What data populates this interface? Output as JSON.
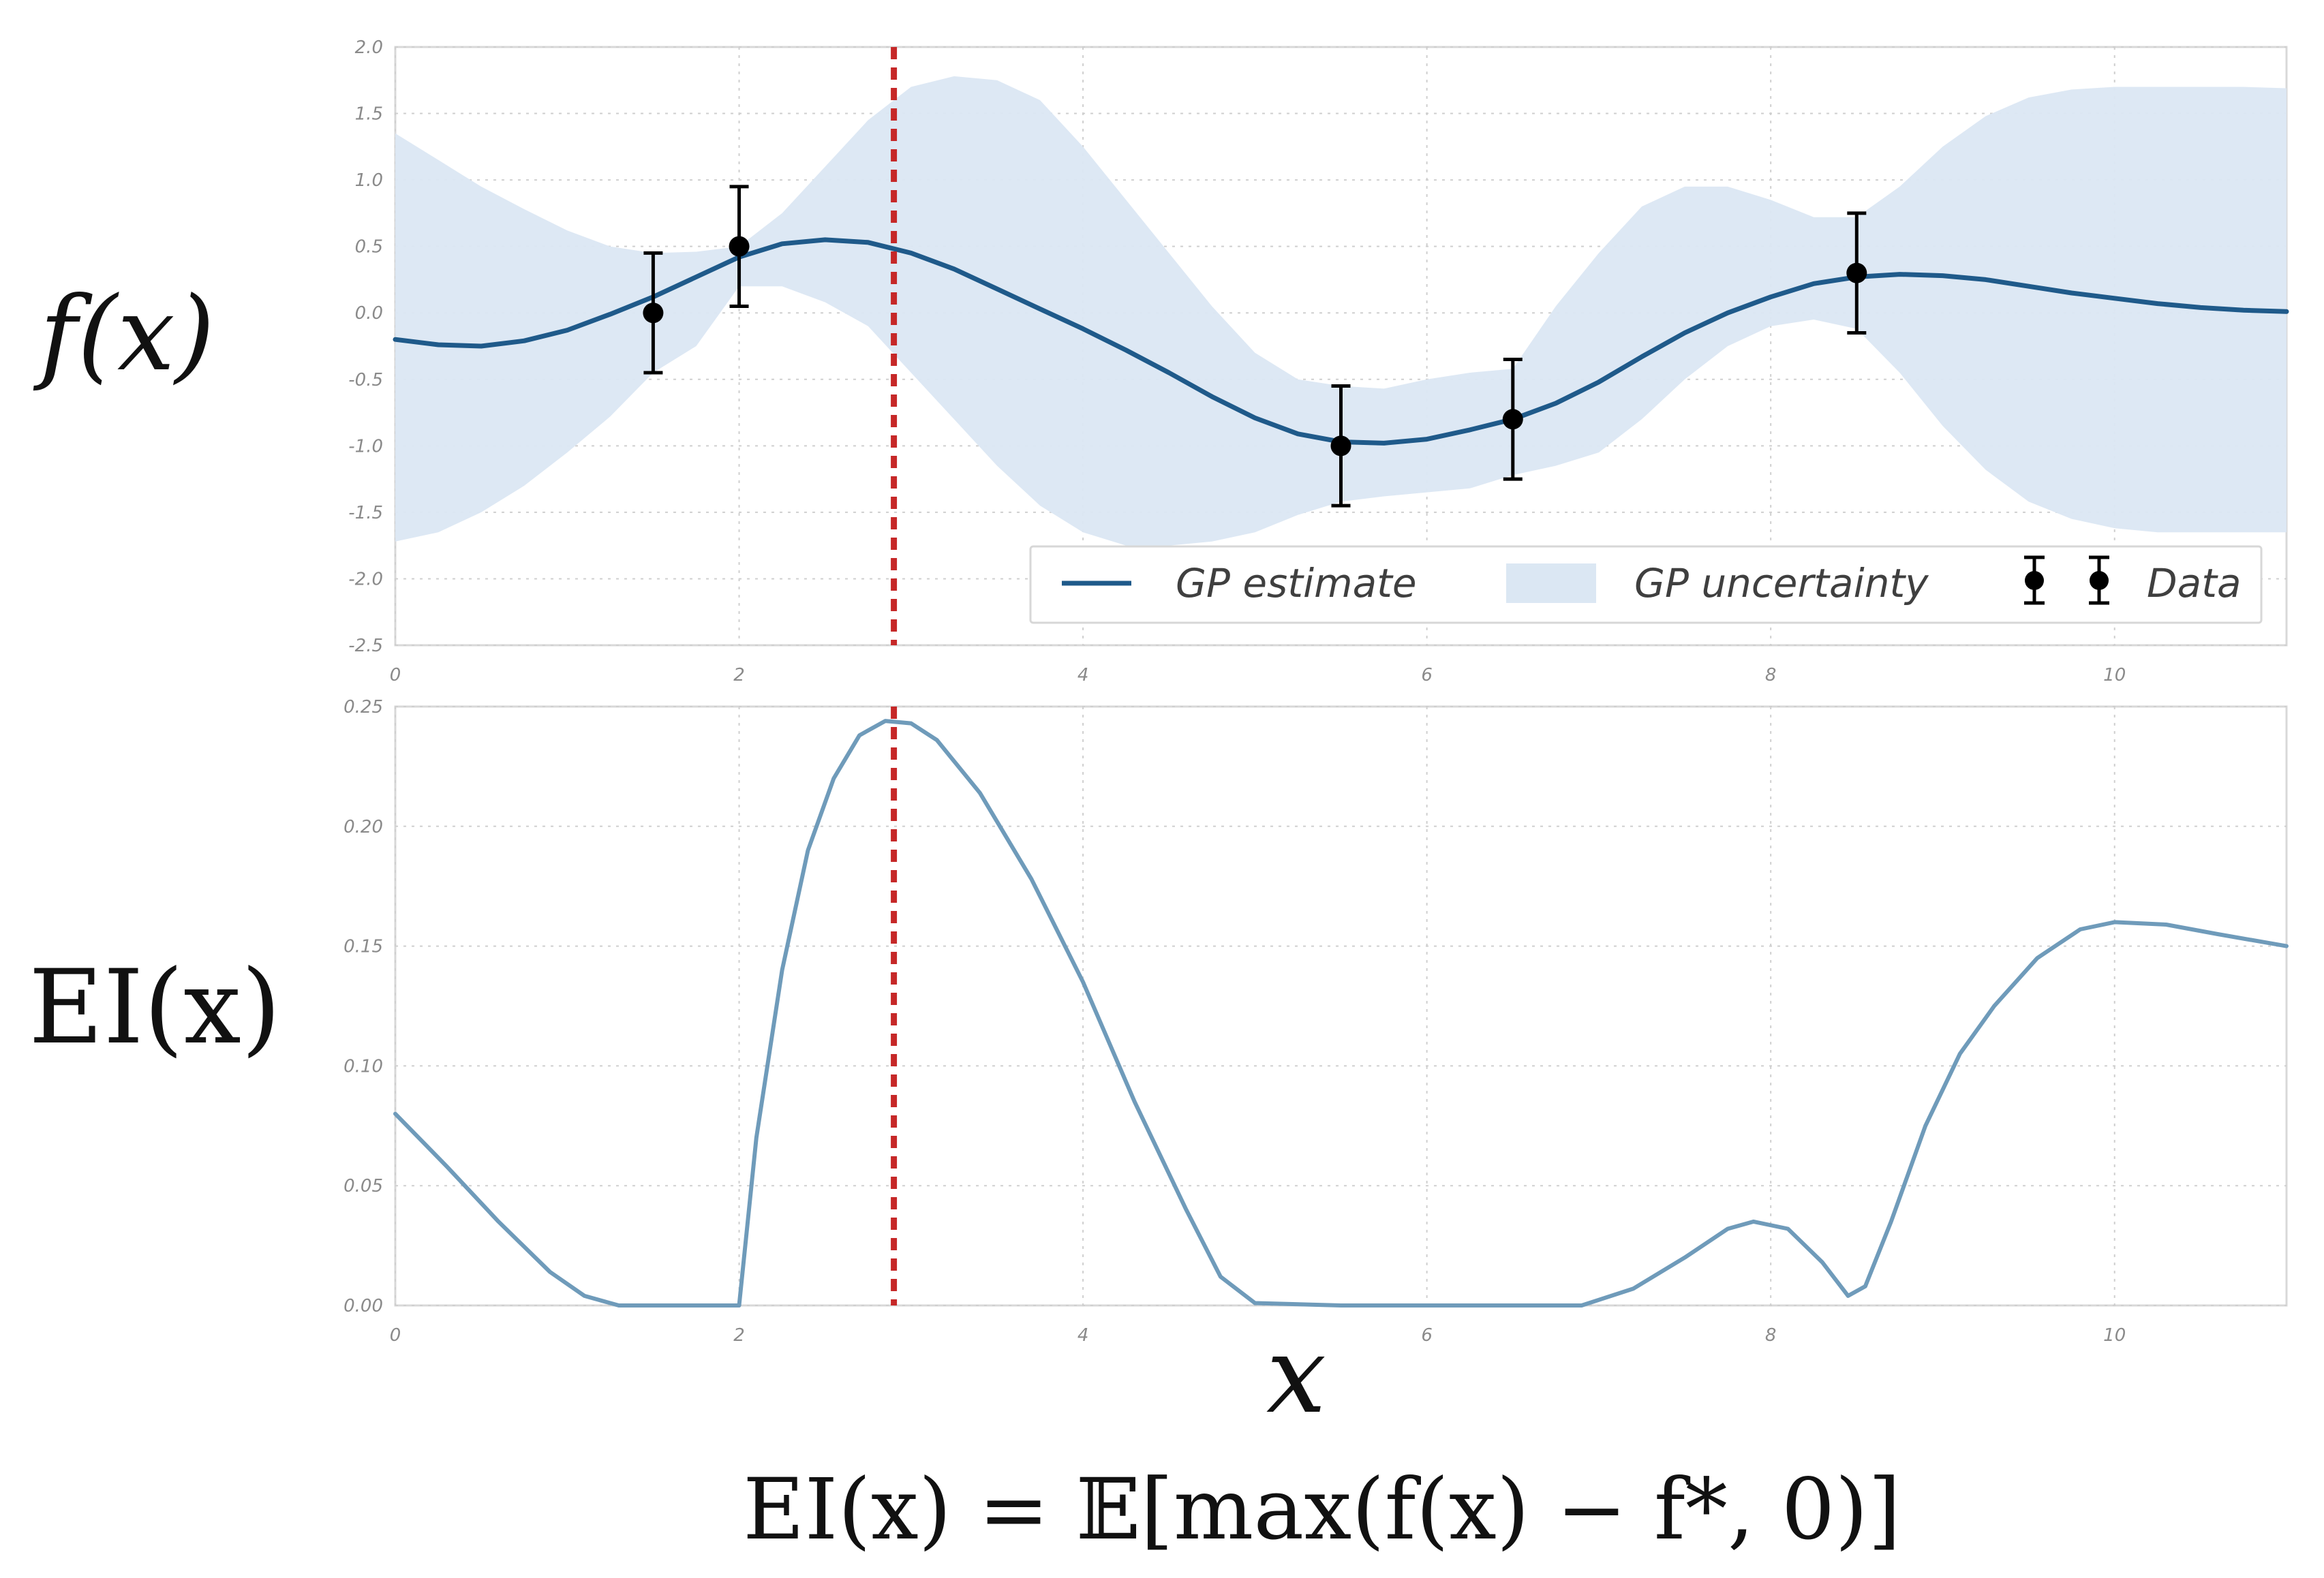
{
  "chart_data": [
    {
      "type": "line",
      "ylabel": "f(x)",
      "xlim": [
        0,
        11
      ],
      "ylim": [
        -2.5,
        2.0
      ],
      "xticks": [
        0,
        2,
        4,
        6,
        8,
        10
      ],
      "yticks": [
        2.0,
        1.5,
        1.0,
        0.5,
        0.0,
        -0.5,
        -1.0,
        -1.5,
        -2.0,
        -2.5
      ],
      "xtick_labels": [
        "0",
        "2",
        "4",
        "6",
        "8",
        "10"
      ],
      "ytick_labels": [
        "2.0",
        "1.5",
        "1.0",
        "0.5",
        "0.0",
        "-0.5",
        "-1.0",
        "-1.5",
        "-2.0",
        "-2.5"
      ],
      "grid": true,
      "legend_position": "bottom-right",
      "vline_x": 2.9,
      "series": [
        {
          "name": "GP estimate",
          "kind": "line",
          "color": "#1f5a8a",
          "x": [
            0,
            0.25,
            0.5,
            0.75,
            1.0,
            1.25,
            1.5,
            1.75,
            2.0,
            2.25,
            2.5,
            2.75,
            3.0,
            3.25,
            3.5,
            3.75,
            4.0,
            4.25,
            4.5,
            4.75,
            5.0,
            5.25,
            5.5,
            5.75,
            6.0,
            6.25,
            6.5,
            6.75,
            7.0,
            7.25,
            7.5,
            7.75,
            8.0,
            8.25,
            8.5,
            8.75,
            9.0,
            9.25,
            9.5,
            9.75,
            10.0,
            10.25,
            10.5,
            10.75,
            11.0
          ],
          "values": [
            -0.2,
            -0.24,
            -0.25,
            -0.21,
            -0.13,
            -0.01,
            0.12,
            0.27,
            0.42,
            0.52,
            0.55,
            0.53,
            0.45,
            0.33,
            0.18,
            0.03,
            -0.12,
            -0.28,
            -0.45,
            -0.63,
            -0.79,
            -0.91,
            -0.97,
            -0.98,
            -0.95,
            -0.88,
            -0.8,
            -0.68,
            -0.52,
            -0.33,
            -0.15,
            0.0,
            0.12,
            0.22,
            0.27,
            0.29,
            0.28,
            0.25,
            0.2,
            0.15,
            0.11,
            0.07,
            0.04,
            0.02,
            0.01
          ]
        },
        {
          "name": "GP uncertainty",
          "kind": "band",
          "color": "#dbe7f3",
          "x": [
            0,
            0.25,
            0.5,
            0.75,
            1.0,
            1.25,
            1.5,
            1.75,
            2.0,
            2.25,
            2.5,
            2.75,
            3.0,
            3.25,
            3.5,
            3.75,
            4.0,
            4.25,
            4.5,
            4.75,
            5.0,
            5.25,
            5.5,
            5.75,
            6.0,
            6.25,
            6.5,
            6.75,
            7.0,
            7.25,
            7.5,
            7.75,
            8.0,
            8.25,
            8.5,
            8.75,
            9.0,
            9.25,
            9.5,
            9.75,
            10.0,
            10.25,
            10.5,
            10.75,
            11.0
          ],
          "upper": [
            1.35,
            1.15,
            0.95,
            0.78,
            0.62,
            0.5,
            0.45,
            0.46,
            0.5,
            0.75,
            1.1,
            1.45,
            1.7,
            1.78,
            1.75,
            1.6,
            1.25,
            0.85,
            0.45,
            0.05,
            -0.3,
            -0.5,
            -0.55,
            -0.57,
            -0.5,
            -0.45,
            -0.42,
            0.05,
            0.45,
            0.8,
            0.95,
            0.95,
            0.85,
            0.72,
            0.72,
            0.95,
            1.25,
            1.48,
            1.62,
            1.68,
            1.7,
            1.7,
            1.7,
            1.7,
            1.69
          ],
          "lower": [
            -1.72,
            -1.65,
            -1.5,
            -1.3,
            -1.05,
            -0.78,
            -0.45,
            -0.25,
            0.2,
            0.2,
            0.08,
            -0.1,
            -0.45,
            -0.8,
            -1.15,
            -1.45,
            -1.65,
            -1.75,
            -1.75,
            -1.72,
            -1.65,
            -1.52,
            -1.42,
            -1.38,
            -1.35,
            -1.32,
            -1.22,
            -1.15,
            -1.05,
            -0.8,
            -0.5,
            -0.25,
            -0.1,
            -0.05,
            -0.12,
            -0.45,
            -0.85,
            -1.18,
            -1.42,
            -1.55,
            -1.62,
            -1.65,
            -1.65,
            -1.65,
            -1.65
          ]
        },
        {
          "name": "Data",
          "kind": "errorbar",
          "color": "#000000",
          "x": [
            1.5,
            2.0,
            5.5,
            6.5,
            8.5
          ],
          "values": [
            0.0,
            0.5,
            -1.0,
            -0.8,
            0.3
          ],
          "error": [
            0.45,
            0.45,
            0.45,
            0.45,
            0.45
          ]
        }
      ]
    },
    {
      "type": "line",
      "ylabel": "EI(x)",
      "xlabel": "x",
      "xlim": [
        0,
        11
      ],
      "ylim": [
        0,
        0.25
      ],
      "xticks": [
        0,
        2,
        4,
        6,
        8,
        10
      ],
      "yticks": [
        0.25,
        0.2,
        0.15,
        0.1,
        0.05,
        0.0
      ],
      "xtick_labels": [
        "0",
        "2",
        "4",
        "6",
        "8",
        "10"
      ],
      "ytick_labels": [
        "0.25",
        "0.20",
        "0.15",
        "0.10",
        "0.05",
        "0.00"
      ],
      "grid": true,
      "vline_x": 2.9,
      "series": [
        {
          "kind": "line",
          "color": "#6f9bba",
          "x": [
            0,
            0.3,
            0.6,
            0.9,
            1.1,
            1.3,
            1.6,
            1.9,
            2.0,
            2.1,
            2.25,
            2.4,
            2.55,
            2.7,
            2.85,
            3.0,
            3.15,
            3.4,
            3.7,
            4.0,
            4.3,
            4.6,
            4.8,
            5.0,
            5.5,
            6.0,
            6.5,
            6.9,
            7.2,
            7.5,
            7.75,
            7.9,
            8.1,
            8.3,
            8.45,
            8.55,
            8.7,
            8.9,
            9.1,
            9.3,
            9.55,
            9.8,
            10.0,
            10.3,
            10.6,
            11.0
          ],
          "values": [
            0.08,
            0.058,
            0.035,
            0.014,
            0.004,
            0.0,
            0.0,
            0.0,
            0.0,
            0.07,
            0.14,
            0.19,
            0.22,
            0.238,
            0.244,
            0.243,
            0.236,
            0.214,
            0.178,
            0.135,
            0.085,
            0.04,
            0.012,
            0.001,
            0.0,
            0.0,
            0.0,
            0.0,
            0.007,
            0.02,
            0.032,
            0.035,
            0.032,
            0.018,
            0.004,
            0.008,
            0.035,
            0.075,
            0.105,
            0.125,
            0.145,
            0.157,
            0.16,
            0.159,
            0.155,
            0.15
          ]
        }
      ]
    }
  ],
  "ui": {
    "top_ylabel": "f(x)",
    "bottom_ylabel": "EI(x)",
    "xlabel": "x",
    "formula": "EI(x) = 𝔼[max(f(x) − f*, 0)]",
    "legend": {
      "gp_estimate": "GP estimate",
      "gp_uncertainty": "GP uncertainty",
      "data": "Data"
    },
    "colors": {
      "vline": "#c62828",
      "grid": "#cfcfcf",
      "frame": "#d8d8d8"
    }
  }
}
